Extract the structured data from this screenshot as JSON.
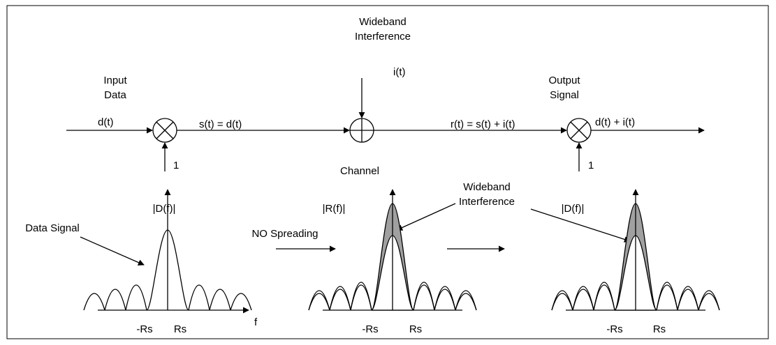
{
  "top": {
    "input": [
      "Input",
      "Data"
    ],
    "input_signal": "d(t)",
    "spread_in_1": "1",
    "s_signal": "s(t) = d(t)",
    "interference": [
      "Wideband",
      "Interference"
    ],
    "interference_signal": "i(t)",
    "r_signal": "r(t) = s(t) + i(t)",
    "output": [
      "Output",
      "Signal"
    ],
    "output_signal": "d(t) + i(t)",
    "spread_in_2": "1",
    "channel": "Channel"
  },
  "spectra": {
    "left_title": "|D(f)|",
    "data_signal": "Data Signal",
    "f_axis": "f",
    "left_neg": "-Rs",
    "left_pos": "Rs",
    "no_spreading": "NO Spreading",
    "middle_title": "|R(f)|",
    "interference": [
      "Wideband",
      "Interference"
    ],
    "middle_neg": "-Rs",
    "middle_pos": "Rs",
    "right_title": "|D(f)|",
    "right_neg": "-Rs",
    "right_pos": "Rs"
  }
}
